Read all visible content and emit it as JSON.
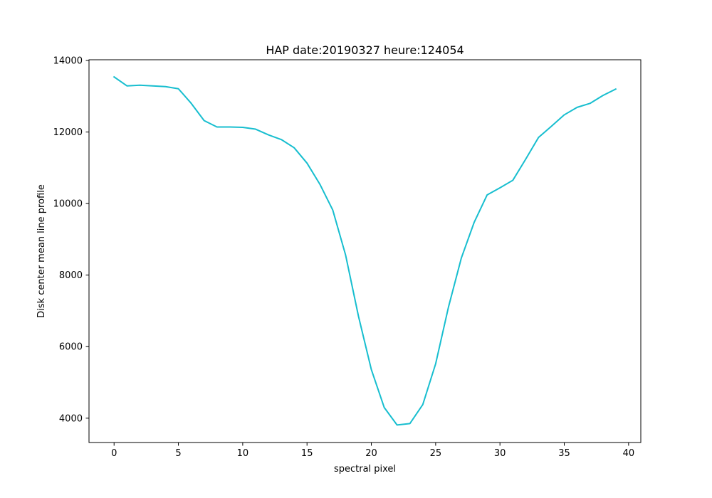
{
  "chart_data": {
    "type": "line",
    "title": "HAP date:20190327 heure:124054",
    "xlabel": "spectral pixel",
    "ylabel": "Disk center mean line profile",
    "xlim": [
      -1.95,
      40.95
    ],
    "ylim": [
      3320,
      14020
    ],
    "xticks": [
      0,
      5,
      10,
      15,
      20,
      25,
      30,
      35,
      40
    ],
    "yticks": [
      4000,
      6000,
      8000,
      10000,
      12000,
      14000
    ],
    "grid": false,
    "legend": "none",
    "series": [
      {
        "color": "#17becf",
        "x": [
          0,
          1,
          2,
          3,
          4,
          5,
          6,
          7,
          8,
          9,
          10,
          11,
          12,
          13,
          14,
          15,
          16,
          17,
          18,
          19,
          20,
          21,
          22,
          23,
          24,
          25,
          26,
          27,
          28,
          29,
          30,
          31,
          32,
          33,
          34,
          35,
          36,
          37,
          38,
          39
        ],
        "y": [
          13540,
          13290,
          13310,
          13290,
          13270,
          13210,
          12800,
          12320,
          12140,
          12140,
          12130,
          12080,
          11920,
          11790,
          11560,
          11130,
          10540,
          9820,
          8560,
          6850,
          5360,
          4300,
          3810,
          3850,
          4380,
          5520,
          7110,
          8480,
          9480,
          10240,
          10440,
          10650,
          11240,
          11850,
          12160,
          12480,
          12690,
          12800,
          13020,
          13200
        ]
      }
    ]
  }
}
